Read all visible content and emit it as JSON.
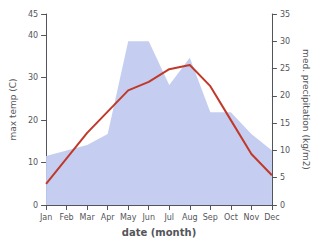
{
  "chart_data": {
    "type": "line",
    "categories": [
      "Jan",
      "Feb",
      "Mar",
      "Apr",
      "May",
      "Jun",
      "Jul",
      "Aug",
      "Sep",
      "Oct",
      "Nov",
      "Dec"
    ],
    "series": [
      {
        "type": "area",
        "color": "#c5cef0",
        "axis": "y2",
        "values": [
          9,
          10,
          11,
          13,
          30,
          30,
          22,
          27,
          17,
          17,
          13,
          10
        ]
      },
      {
        "type": "line",
        "color": "#c0392b",
        "values": [
          5,
          11,
          17,
          22,
          27,
          29,
          32,
          33,
          28,
          20,
          12,
          7
        ]
      }
    ],
    "xlabel": "date (month)",
    "ylabel": "max temp (C)",
    "y2label": "med. precipitation (kg/m2)",
    "ylim": [
      0,
      45
    ],
    "yticks": [
      0,
      10,
      20,
      30,
      40
    ],
    "y2lim": [
      0,
      35
    ],
    "y2ticks": [
      0,
      5,
      10,
      15,
      20,
      25,
      30,
      35
    ],
    "grid": false
  }
}
